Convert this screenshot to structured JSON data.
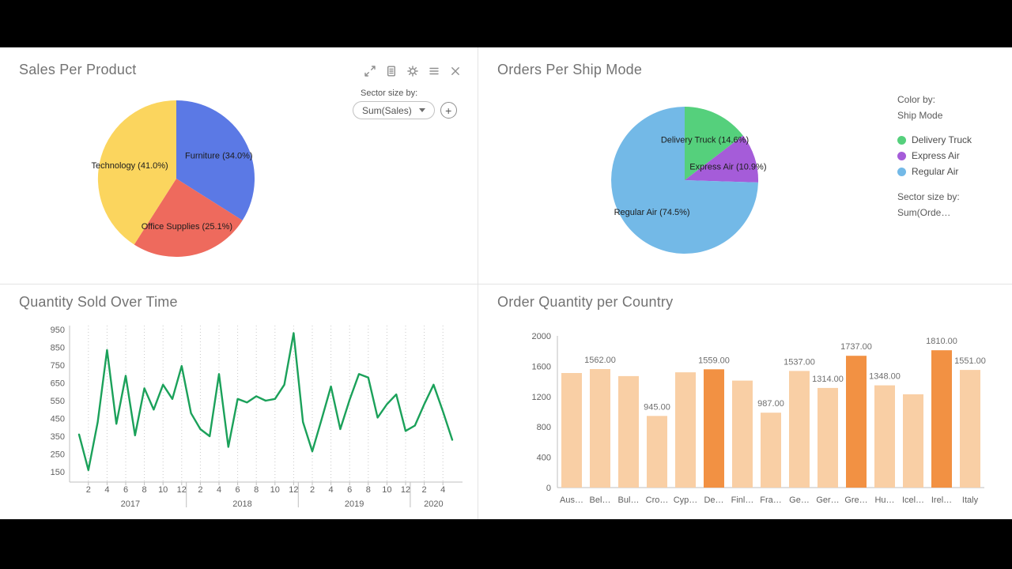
{
  "panels": {
    "sales": {
      "title": "Sales Per Product",
      "toolbar_icons": [
        "expand",
        "notes",
        "settings",
        "list",
        "close"
      ],
      "sector_size_label": "Sector size by:",
      "sector_size_value": "Sum(Sales)",
      "add_label": "+"
    },
    "ship": {
      "title": "Orders Per Ship Mode",
      "legend": {
        "color_by_label": "Color by:",
        "color_by_value": "Ship Mode",
        "items": [
          "Delivery Truck",
          "Express Air",
          "Regular Air"
        ],
        "sector_size_label": "Sector size by:",
        "sector_size_value": "Sum(Orde…"
      }
    },
    "quantity": {
      "title": "Quantity Sold Over Time"
    },
    "country": {
      "title": "Order Quantity per Country"
    }
  },
  "chart_data": [
    {
      "id": "sales-per-product",
      "type": "pie",
      "title": "Sales Per Product",
      "sector_size_by": "Sum(Sales)",
      "slices": [
        {
          "name": "Furniture",
          "pct": 34.0,
          "label": "Furniture (34.0%)",
          "color": "#5b79e5"
        },
        {
          "name": "Office Supplies",
          "pct": 25.1,
          "label": "Office Supplies (25.1%)",
          "color": "#ee6a5d"
        },
        {
          "name": "Technology",
          "pct": 41.0,
          "label": "Technology (41.0%)",
          "color": "#fbd55e"
        }
      ]
    },
    {
      "id": "orders-per-ship-mode",
      "type": "pie",
      "title": "Orders Per Ship Mode",
      "color_by": "Ship Mode",
      "sector_size_by": "Sum(Orde…",
      "slices": [
        {
          "name": "Delivery Truck",
          "pct": 14.6,
          "label": "Delivery Truck (14.6%)",
          "color": "#55d07c"
        },
        {
          "name": "Express Air",
          "pct": 10.9,
          "label": "Express Air (10.9%)",
          "color": "#a55cd9"
        },
        {
          "name": "Regular Air",
          "pct": 74.5,
          "label": "Regular Air (74.5%)",
          "color": "#73b9e7"
        }
      ]
    },
    {
      "id": "quantity-sold-over-time",
      "type": "line",
      "title": "Quantity Sold Over Time",
      "line_color": "#1ba15a",
      "ylim": [
        150,
        950
      ],
      "yticks": [
        150,
        250,
        350,
        450,
        550,
        650,
        750,
        850,
        950
      ],
      "month_tick_interval": 2,
      "years": [
        {
          "label": "2017",
          "months": 12
        },
        {
          "label": "2018",
          "months": 12
        },
        {
          "label": "2019",
          "months": 12
        },
        {
          "label": "2020",
          "months": 5
        }
      ],
      "values": [
        360,
        160,
        430,
        835,
        420,
        690,
        355,
        620,
        500,
        640,
        560,
        745,
        480,
        390,
        350,
        700,
        290,
        560,
        540,
        575,
        550,
        560,
        640,
        930,
        430,
        265,
        445,
        630,
        390,
        555,
        700,
        680,
        455,
        530,
        585,
        380,
        410,
        530,
        640,
        490,
        330
      ]
    },
    {
      "id": "order-quantity-per-country",
      "type": "bar",
      "title": "Order Quantity per Country",
      "ylim": [
        0,
        2000
      ],
      "yticks": [
        0,
        400,
        800,
        1200,
        1600,
        2000
      ],
      "colors": {
        "base": "#f9cfa5",
        "highlight": "#f29143"
      },
      "bars": [
        {
          "cat": "Aus…",
          "value": 1510,
          "label": null,
          "highlight": false
        },
        {
          "cat": "Bel…",
          "value": 1562,
          "label": "1562.00",
          "highlight": false
        },
        {
          "cat": "Bul…",
          "value": 1470,
          "label": null,
          "highlight": false
        },
        {
          "cat": "Cro…",
          "value": 945,
          "label": "945.00",
          "highlight": false
        },
        {
          "cat": "Cyp…",
          "value": 1520,
          "label": null,
          "highlight": false
        },
        {
          "cat": "De…",
          "value": 1559,
          "label": "1559.00",
          "highlight": true
        },
        {
          "cat": "Finl…",
          "value": 1410,
          "label": null,
          "highlight": false
        },
        {
          "cat": "Fra…",
          "value": 987,
          "label": "987.00",
          "highlight": false
        },
        {
          "cat": "Ge…",
          "value": 1537,
          "label": "1537.00",
          "highlight": false
        },
        {
          "cat": "Ger…",
          "value": 1314,
          "label": "1314.00",
          "highlight": false
        },
        {
          "cat": "Gre…",
          "value": 1737,
          "label": "1737.00",
          "highlight": true
        },
        {
          "cat": "Hu…",
          "value": 1348,
          "label": "1348.00",
          "highlight": false
        },
        {
          "cat": "Icel…",
          "value": 1230,
          "label": null,
          "highlight": false
        },
        {
          "cat": "Irel…",
          "value": 1810,
          "label": "1810.00",
          "highlight": true
        },
        {
          "cat": "Italy",
          "value": 1551,
          "label": "1551.00",
          "highlight": false
        }
      ]
    }
  ]
}
